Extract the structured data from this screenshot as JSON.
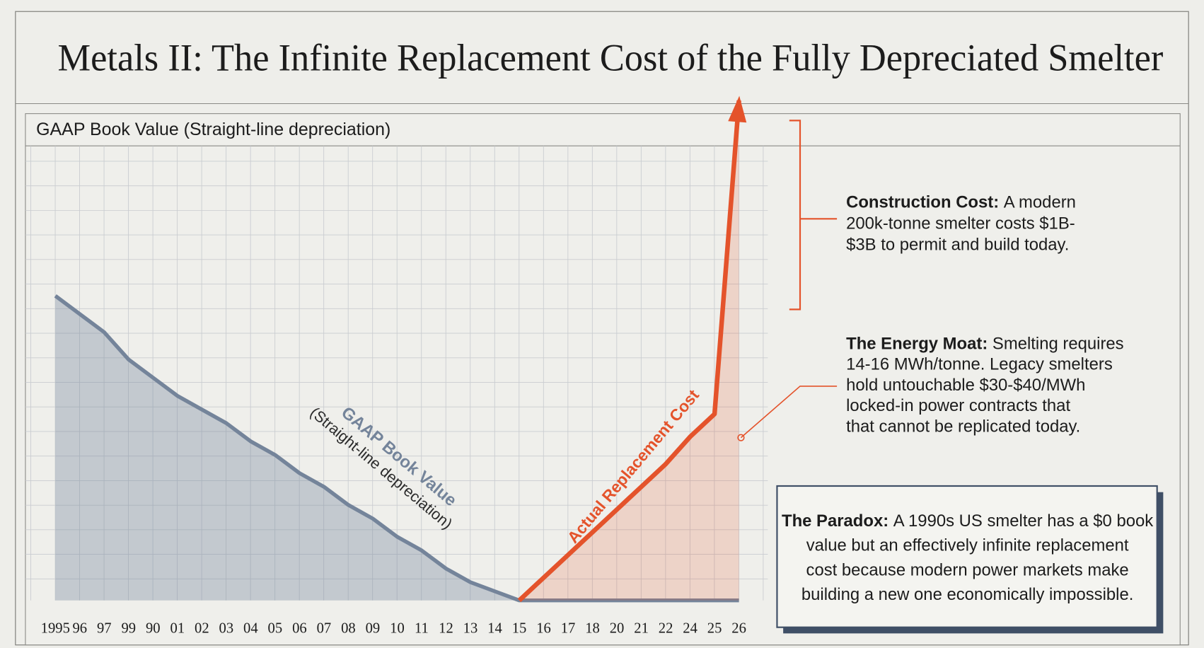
{
  "chart_data": {
    "type": "line",
    "title": "Metals II: The Infinite Replacement Cost of the Fully Depreciated Smelter",
    "panel_label": "GAAP Book Value (Straight-line depreciation)",
    "categories": [
      "1995",
      "96",
      "97",
      "99",
      "90",
      "01",
      "02",
      "03",
      "04",
      "05",
      "06",
      "07",
      "08",
      "09",
      "10",
      "11",
      "12",
      "13",
      "14",
      "15",
      "16",
      "17",
      "18",
      "20",
      "21",
      "22",
      "24",
      "25",
      "26"
    ],
    "ylim": [
      0,
      100
    ],
    "series": [
      {
        "name": "GAAP Book Value",
        "note": "(Straight-line depreciation)",
        "color": "#74849a",
        "values": [
          67,
          63,
          59,
          53,
          49,
          45,
          42,
          39,
          35,
          32,
          28,
          25,
          21,
          18,
          14,
          11,
          7,
          4,
          2,
          0,
          0,
          0,
          0,
          0,
          0,
          0,
          0,
          0,
          0
        ]
      },
      {
        "name": "Actual Replacement Cost",
        "color": "#e4532b",
        "values": [
          null,
          null,
          null,
          null,
          null,
          null,
          null,
          null,
          null,
          null,
          null,
          null,
          null,
          null,
          null,
          null,
          null,
          null,
          null,
          0,
          5,
          10,
          15,
          20,
          25,
          30,
          36,
          41,
          110
        ]
      }
    ],
    "annotations": [
      {
        "title": "Construction Cost:",
        "lines": [
          "A modern",
          "200k-tonne smelter costs $1B-",
          "$3B to permit and build today."
        ]
      },
      {
        "title": "The Energy Moat:",
        "lines": [
          "Smelting requires",
          "14-16 MWh/tonne. Legacy smelters",
          "hold untouchable $30-$40/MWh",
          "locked-in power contracts that",
          "that cannot be replicated today."
        ]
      },
      {
        "title": "The Paradox:",
        "lines": [
          "A 1990s US smelter has a $0 book",
          "value but an effectively infinite replacement",
          "cost because modern power markets make",
          "building a new one economically impossible."
        ]
      }
    ]
  }
}
